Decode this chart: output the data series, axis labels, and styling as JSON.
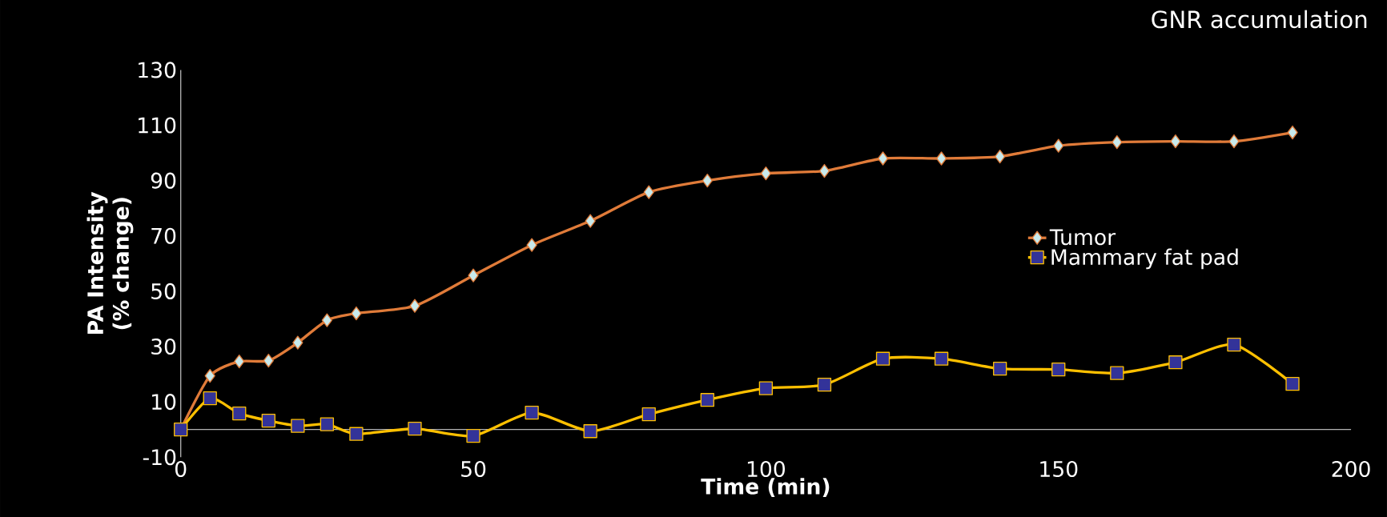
{
  "chart_data": {
    "type": "line",
    "title": "GNR accumulation",
    "xlabel": "Time (min)",
    "ylabel": "PA Intensity (% change)",
    "x": [
      0,
      5,
      10,
      15,
      20,
      25,
      30,
      40,
      50,
      60,
      70,
      80,
      90,
      100,
      110,
      120,
      130,
      140,
      150,
      160,
      170,
      180,
      190
    ],
    "series": [
      {
        "name": "Tumor",
        "color": "#e07b39",
        "marker": "diamond",
        "values": [
          0,
          19.4,
          24.6,
          24.9,
          31.4,
          39.5,
          42,
          44.7,
          55.7,
          66.7,
          75.4,
          85.8,
          90,
          92.6,
          93.5,
          98,
          98,
          98.7,
          102.6,
          103.9,
          104.2,
          104.2,
          107.4
        ]
      },
      {
        "name": "Mammary fat pad",
        "color": "#ffc000",
        "marker": "square",
        "values": [
          0,
          11.3,
          5.8,
          3.2,
          1.3,
          1.9,
          -1.6,
          0.3,
          -2.3,
          6.1,
          -0.6,
          5.5,
          10.7,
          14.9,
          16.2,
          25.6,
          25.6,
          22,
          21.7,
          20.4,
          24.3,
          30.7,
          16.5
        ]
      }
    ],
    "xlim": [
      0,
      200
    ],
    "xticks": [
      0,
      50,
      100,
      150,
      200
    ],
    "ylim": [
      -10,
      130
    ],
    "yticks": [
      -10,
      10,
      30,
      50,
      70,
      90,
      110,
      130
    ],
    "grid": false,
    "legend": "right",
    "line_style": "solid"
  }
}
